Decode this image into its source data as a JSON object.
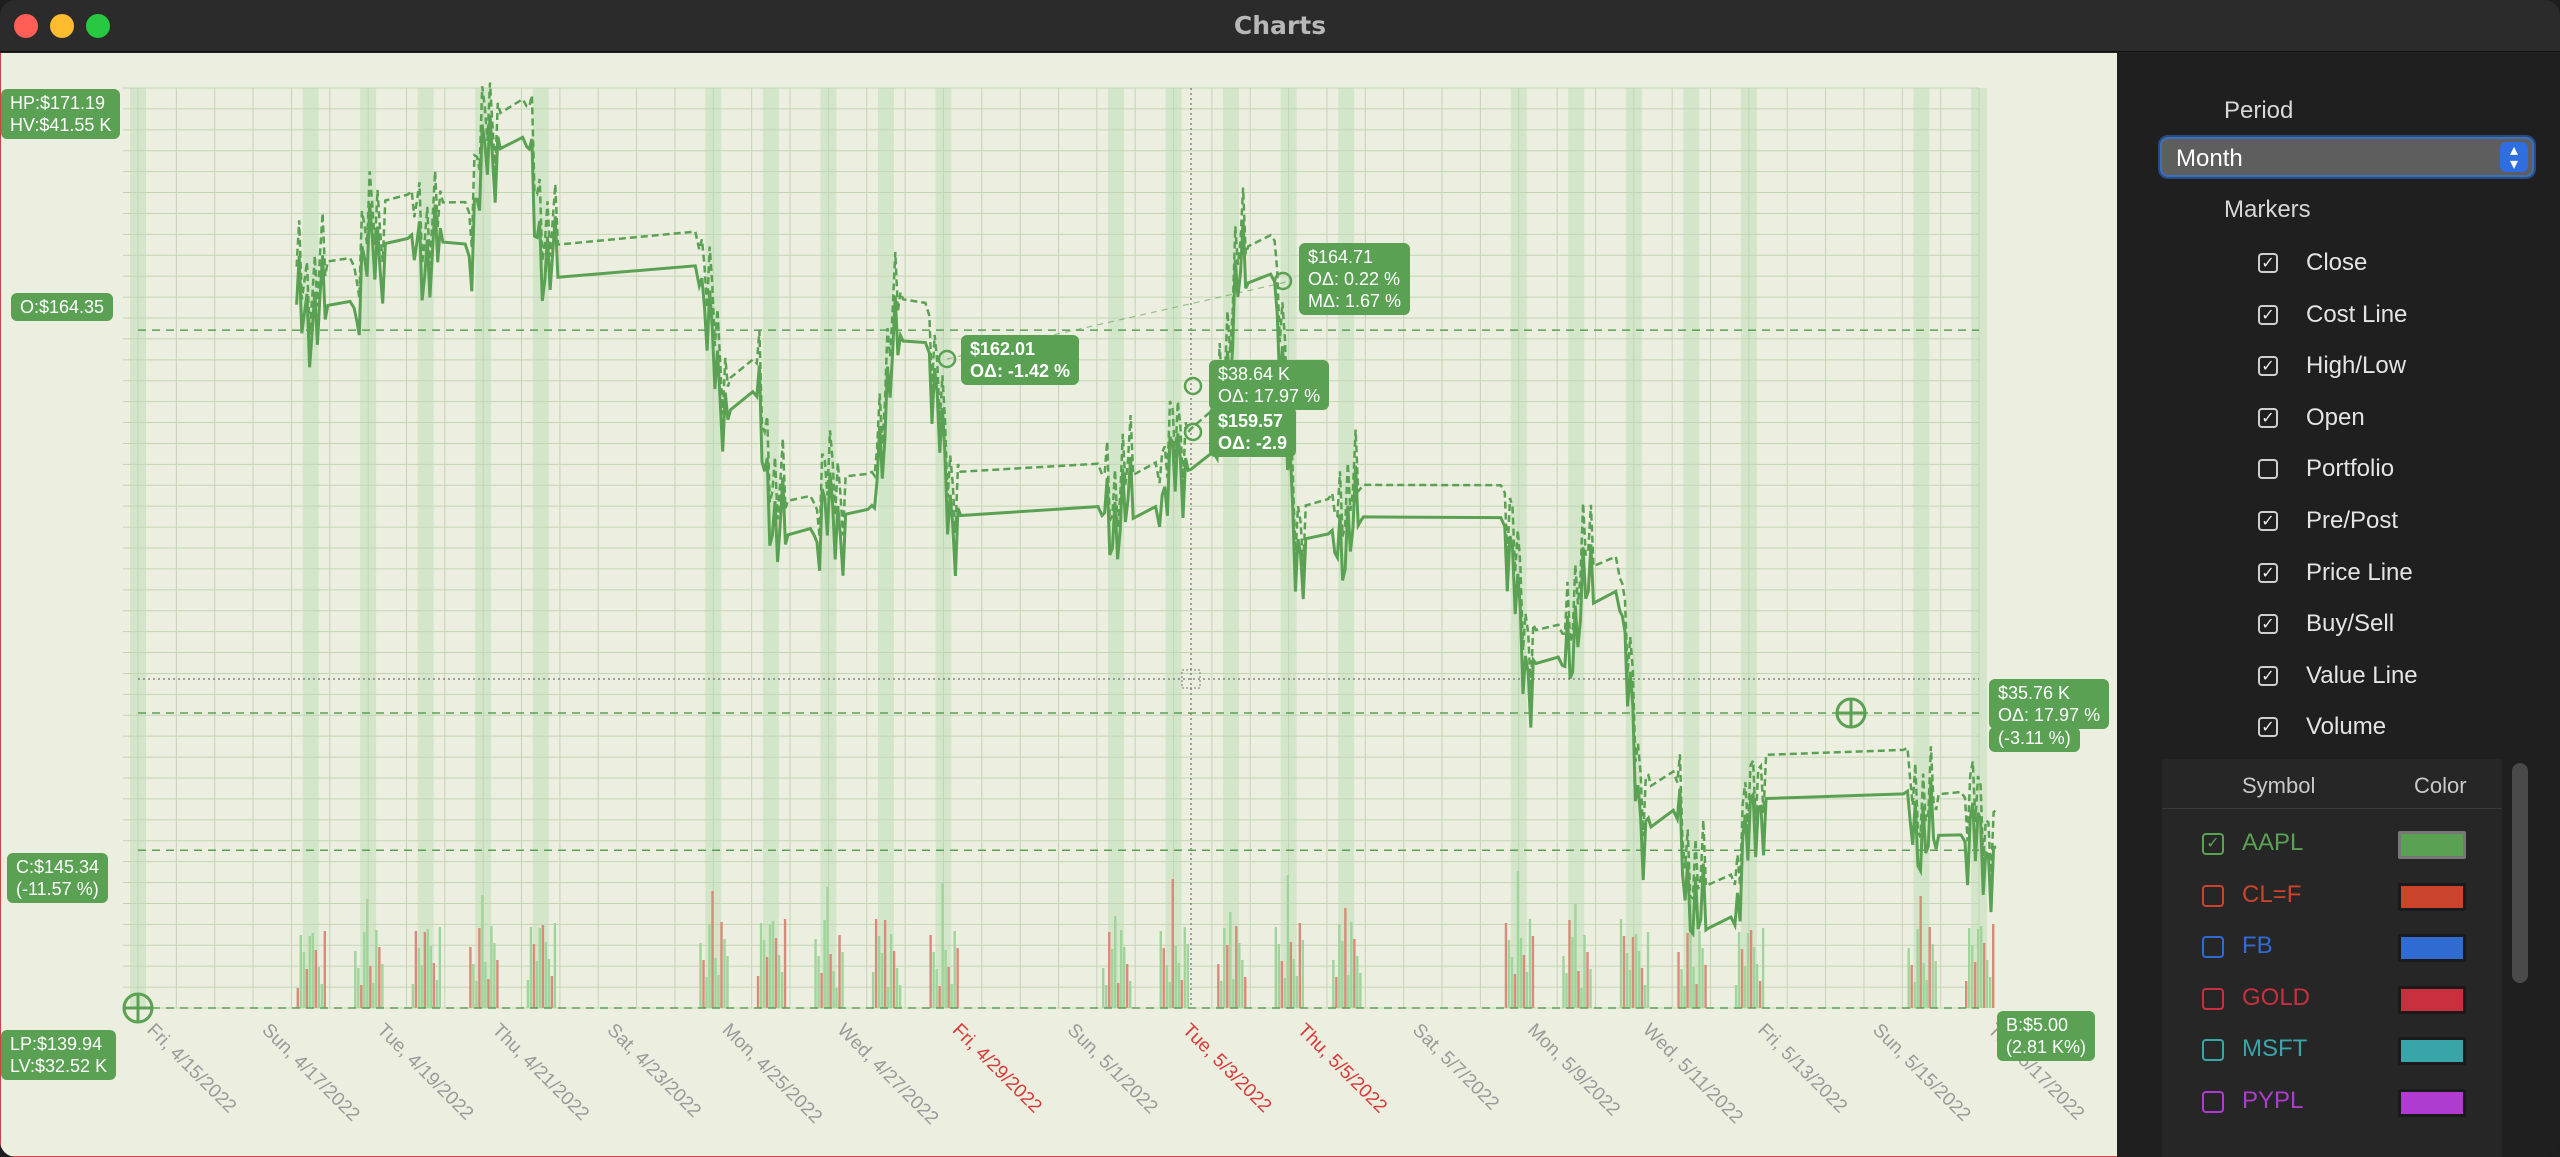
{
  "window": {
    "title": "Charts",
    "traffic_lights": [
      {
        "name": "close-button",
        "color": "#ff5f57"
      },
      {
        "name": "minimize-button",
        "color": "#febc2e"
      },
      {
        "name": "zoom-button",
        "color": "#28c840"
      }
    ]
  },
  "chart": {
    "series_color": "#5aa153",
    "volume_up_color": "#9fd49a",
    "volume_down_color": "#d98b7a",
    "labels": {
      "hp": "HP:$171.19",
      "hv": "HV:$41.55 K",
      "open": "O:$164.35",
      "close_price": "C:$145.34",
      "close_pct": "(-11.57 %)",
      "lp": "LP:$139.94",
      "lv": "LV:$32.52 K",
      "buy_price": "B:$5.00",
      "buy_pct": "(2.81 K%)",
      "right_value": "$35.76 K",
      "right_delta": "OΔ: 17.97 %",
      "right_pct": "(-3.11 %)",
      "marker1_price": "$162.01",
      "marker1_delta": "OΔ: -1.42 %",
      "marker2_price": "$164.71",
      "marker2_delta": "OΔ: 0.22 %",
      "marker2_mdelta": "MΔ: 1.67 %",
      "cursor_value": "$38.64 K",
      "cursor_delta": "OΔ: 17.97 %",
      "cursor_price": "$159.57",
      "cursor_pdelta": "OΔ: -2.9"
    },
    "x_labels": [
      {
        "text": "Fri, 4/15/2022",
        "red": false
      },
      {
        "text": "Sun, 4/17/2022",
        "red": false
      },
      {
        "text": "Tue, 4/19/2022",
        "red": false
      },
      {
        "text": "Thu, 4/21/2022",
        "red": false
      },
      {
        "text": "Sat, 4/23/2022",
        "red": false
      },
      {
        "text": "Mon, 4/25/2022",
        "red": false
      },
      {
        "text": "Wed, 4/27/2022",
        "red": false
      },
      {
        "text": "Fri, 4/29/2022",
        "red": true
      },
      {
        "text": "Sun, 5/1/2022",
        "red": false
      },
      {
        "text": "Tue, 5/3/2022",
        "red": true
      },
      {
        "text": "Thu, 5/5/2022",
        "red": true
      },
      {
        "text": "Sat, 5/7/2022",
        "red": false
      },
      {
        "text": "Mon, 5/9/2022",
        "red": false
      },
      {
        "text": "Wed, 5/11/2022",
        "red": false
      },
      {
        "text": "Fri, 5/13/2022",
        "red": false
      },
      {
        "text": "Sun, 5/15/2022",
        "red": false
      },
      {
        "text": "Tue, 5/17/2022",
        "red": false
      }
    ]
  },
  "chart_data": {
    "type": "line",
    "title": "",
    "x_range": [
      "4/15/2022",
      "5/17/2022"
    ],
    "y_range": [
      139.94,
      171.19
    ],
    "series": [
      {
        "name": "AAPL",
        "x": [
          "4/18/2022",
          "4/19/2022",
          "4/20/2022",
          "4/21/2022",
          "4/22/2022",
          "4/25/2022",
          "4/26/2022",
          "4/27/2022",
          "4/28/2022",
          "4/29/2022",
          "5/2/2022",
          "5/3/2022",
          "5/4/2022",
          "5/5/2022",
          "5/6/2022",
          "5/9/2022",
          "5/10/2022",
          "5/11/2022",
          "5/12/2022",
          "5/13/2022",
          "5/16/2022",
          "5/17/2022"
        ],
        "values": [
          165.1,
          167.4,
          167.2,
          171.1,
          166.4,
          161.8,
          156.8,
          157.5,
          163.6,
          157.6,
          157.6,
          159.6,
          166.1,
          156.6,
          157.2,
          152.1,
          154.5,
          146.5,
          142.6,
          147.1,
          145.6,
          145.3
        ]
      }
    ],
    "reference_lines": {
      "open": 164.35,
      "close": 145.34,
      "high": 171.19,
      "low": 139.94
    }
  },
  "sidebar": {
    "period_label": "Period",
    "period_value": "Month",
    "markers_label": "Markers",
    "markers": [
      {
        "label": "Close",
        "checked": true
      },
      {
        "label": "Cost Line",
        "checked": true
      },
      {
        "label": "High/Low",
        "checked": true
      },
      {
        "label": "Open",
        "checked": true
      },
      {
        "label": "Portfolio",
        "checked": false
      },
      {
        "label": "Pre/Post",
        "checked": true
      },
      {
        "label": "Price Line",
        "checked": true
      },
      {
        "label": "Buy/Sell",
        "checked": true
      },
      {
        "label": "Value Line",
        "checked": true
      },
      {
        "label": "Volume",
        "checked": true
      }
    ],
    "table": {
      "col_symbol": "Symbol",
      "col_color": "Color",
      "rows": [
        {
          "symbol": "AAPL",
          "checked": true,
          "color": "#5aa153"
        },
        {
          "symbol": "CL=F",
          "checked": false,
          "color": "#c9442a"
        },
        {
          "symbol": "FB",
          "checked": false,
          "color": "#2f6bd1"
        },
        {
          "symbol": "GOLD",
          "checked": false,
          "color": "#c8303f"
        },
        {
          "symbol": "MSFT",
          "checked": false,
          "color": "#3aa5a8"
        },
        {
          "symbol": "PYPL",
          "checked": false,
          "color": "#b03bd1"
        }
      ]
    }
  }
}
